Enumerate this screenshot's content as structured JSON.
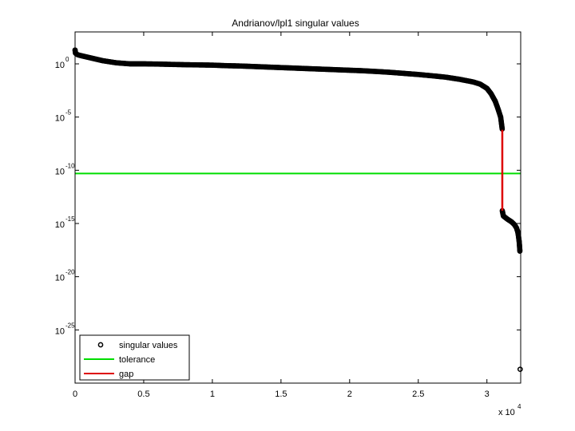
{
  "chart_data": {
    "type": "scatter",
    "title": "Andrianov/lpl1 singular values",
    "xlabel": "",
    "ylabel": "",
    "x_multiplier": "x 10",
    "x_multiplier_exp": "4",
    "xlim": [
      0,
      32460
    ],
    "ylim_log10": [
      -30,
      3
    ],
    "y_scale": "log",
    "grid": false,
    "legend_position": "bottom-left",
    "x_ticks": [
      {
        "value": 0,
        "label": "0"
      },
      {
        "value": 5000,
        "label": "0.5"
      },
      {
        "value": 10000,
        "label": "1"
      },
      {
        "value": 15000,
        "label": "1.5"
      },
      {
        "value": 20000,
        "label": "2"
      },
      {
        "value": 25000,
        "label": "2.5"
      },
      {
        "value": 30000,
        "label": "3"
      }
    ],
    "y_ticks": [
      {
        "exp": 0,
        "base": "10",
        "sup": "0"
      },
      {
        "exp": -5,
        "base": "10",
        "sup": "-5"
      },
      {
        "exp": -10,
        "base": "10",
        "sup": "-10"
      },
      {
        "exp": -15,
        "base": "10",
        "sup": "-15"
      },
      {
        "exp": -20,
        "base": "10",
        "sup": "-20"
      },
      {
        "exp": -25,
        "base": "10",
        "sup": "-25"
      }
    ],
    "series": [
      {
        "name": "singular values",
        "marker": "circle",
        "color": "#000000",
        "points_log10": [
          [
            0,
            1.3
          ],
          [
            30,
            1.0
          ],
          [
            200,
            0.85
          ],
          [
            500,
            0.75
          ],
          [
            1000,
            0.6
          ],
          [
            1500,
            0.45
          ],
          [
            2000,
            0.3
          ],
          [
            2500,
            0.2
          ],
          [
            3000,
            0.1
          ],
          [
            3500,
            0.05
          ],
          [
            4000,
            0.0
          ],
          [
            5000,
            0.0
          ],
          [
            6000,
            -0.02
          ],
          [
            7000,
            -0.05
          ],
          [
            8000,
            -0.08
          ],
          [
            9000,
            -0.1
          ],
          [
            10000,
            -0.12
          ],
          [
            11000,
            -0.17
          ],
          [
            12000,
            -0.2
          ],
          [
            13000,
            -0.25
          ],
          [
            14000,
            -0.3
          ],
          [
            15000,
            -0.35
          ],
          [
            16000,
            -0.4
          ],
          [
            17000,
            -0.45
          ],
          [
            18000,
            -0.5
          ],
          [
            19000,
            -0.55
          ],
          [
            20000,
            -0.6
          ],
          [
            21000,
            -0.65
          ],
          [
            22000,
            -0.72
          ],
          [
            23000,
            -0.8
          ],
          [
            24000,
            -0.9
          ],
          [
            25000,
            -1.0
          ],
          [
            26000,
            -1.12
          ],
          [
            27000,
            -1.25
          ],
          [
            28000,
            -1.45
          ],
          [
            29000,
            -1.7
          ],
          [
            29500,
            -1.9
          ],
          [
            30000,
            -2.3
          ],
          [
            30300,
            -2.8
          ],
          [
            30600,
            -3.5
          ],
          [
            30800,
            -4.2
          ],
          [
            31000,
            -5.0
          ],
          [
            31080,
            -5.8
          ],
          [
            31120,
            -6.2
          ],
          [
            31120,
            -13.8
          ],
          [
            31200,
            -14.3
          ],
          [
            31500,
            -14.6
          ],
          [
            31800,
            -14.85
          ],
          [
            32000,
            -15.1
          ],
          [
            32150,
            -15.4
          ],
          [
            32250,
            -15.8
          ],
          [
            32300,
            -16.2
          ],
          [
            32350,
            -16.7
          ],
          [
            32380,
            -17.2
          ],
          [
            32400,
            -17.6
          ],
          [
            32420,
            -28.7
          ]
        ]
      },
      {
        "name": "tolerance",
        "color": "#00dd00",
        "y_log10": -10.3
      },
      {
        "name": "gap",
        "color": "#dd0000",
        "x": 31120,
        "y_from_log10": -6.2,
        "y_to_log10": -13.8
      }
    ]
  }
}
